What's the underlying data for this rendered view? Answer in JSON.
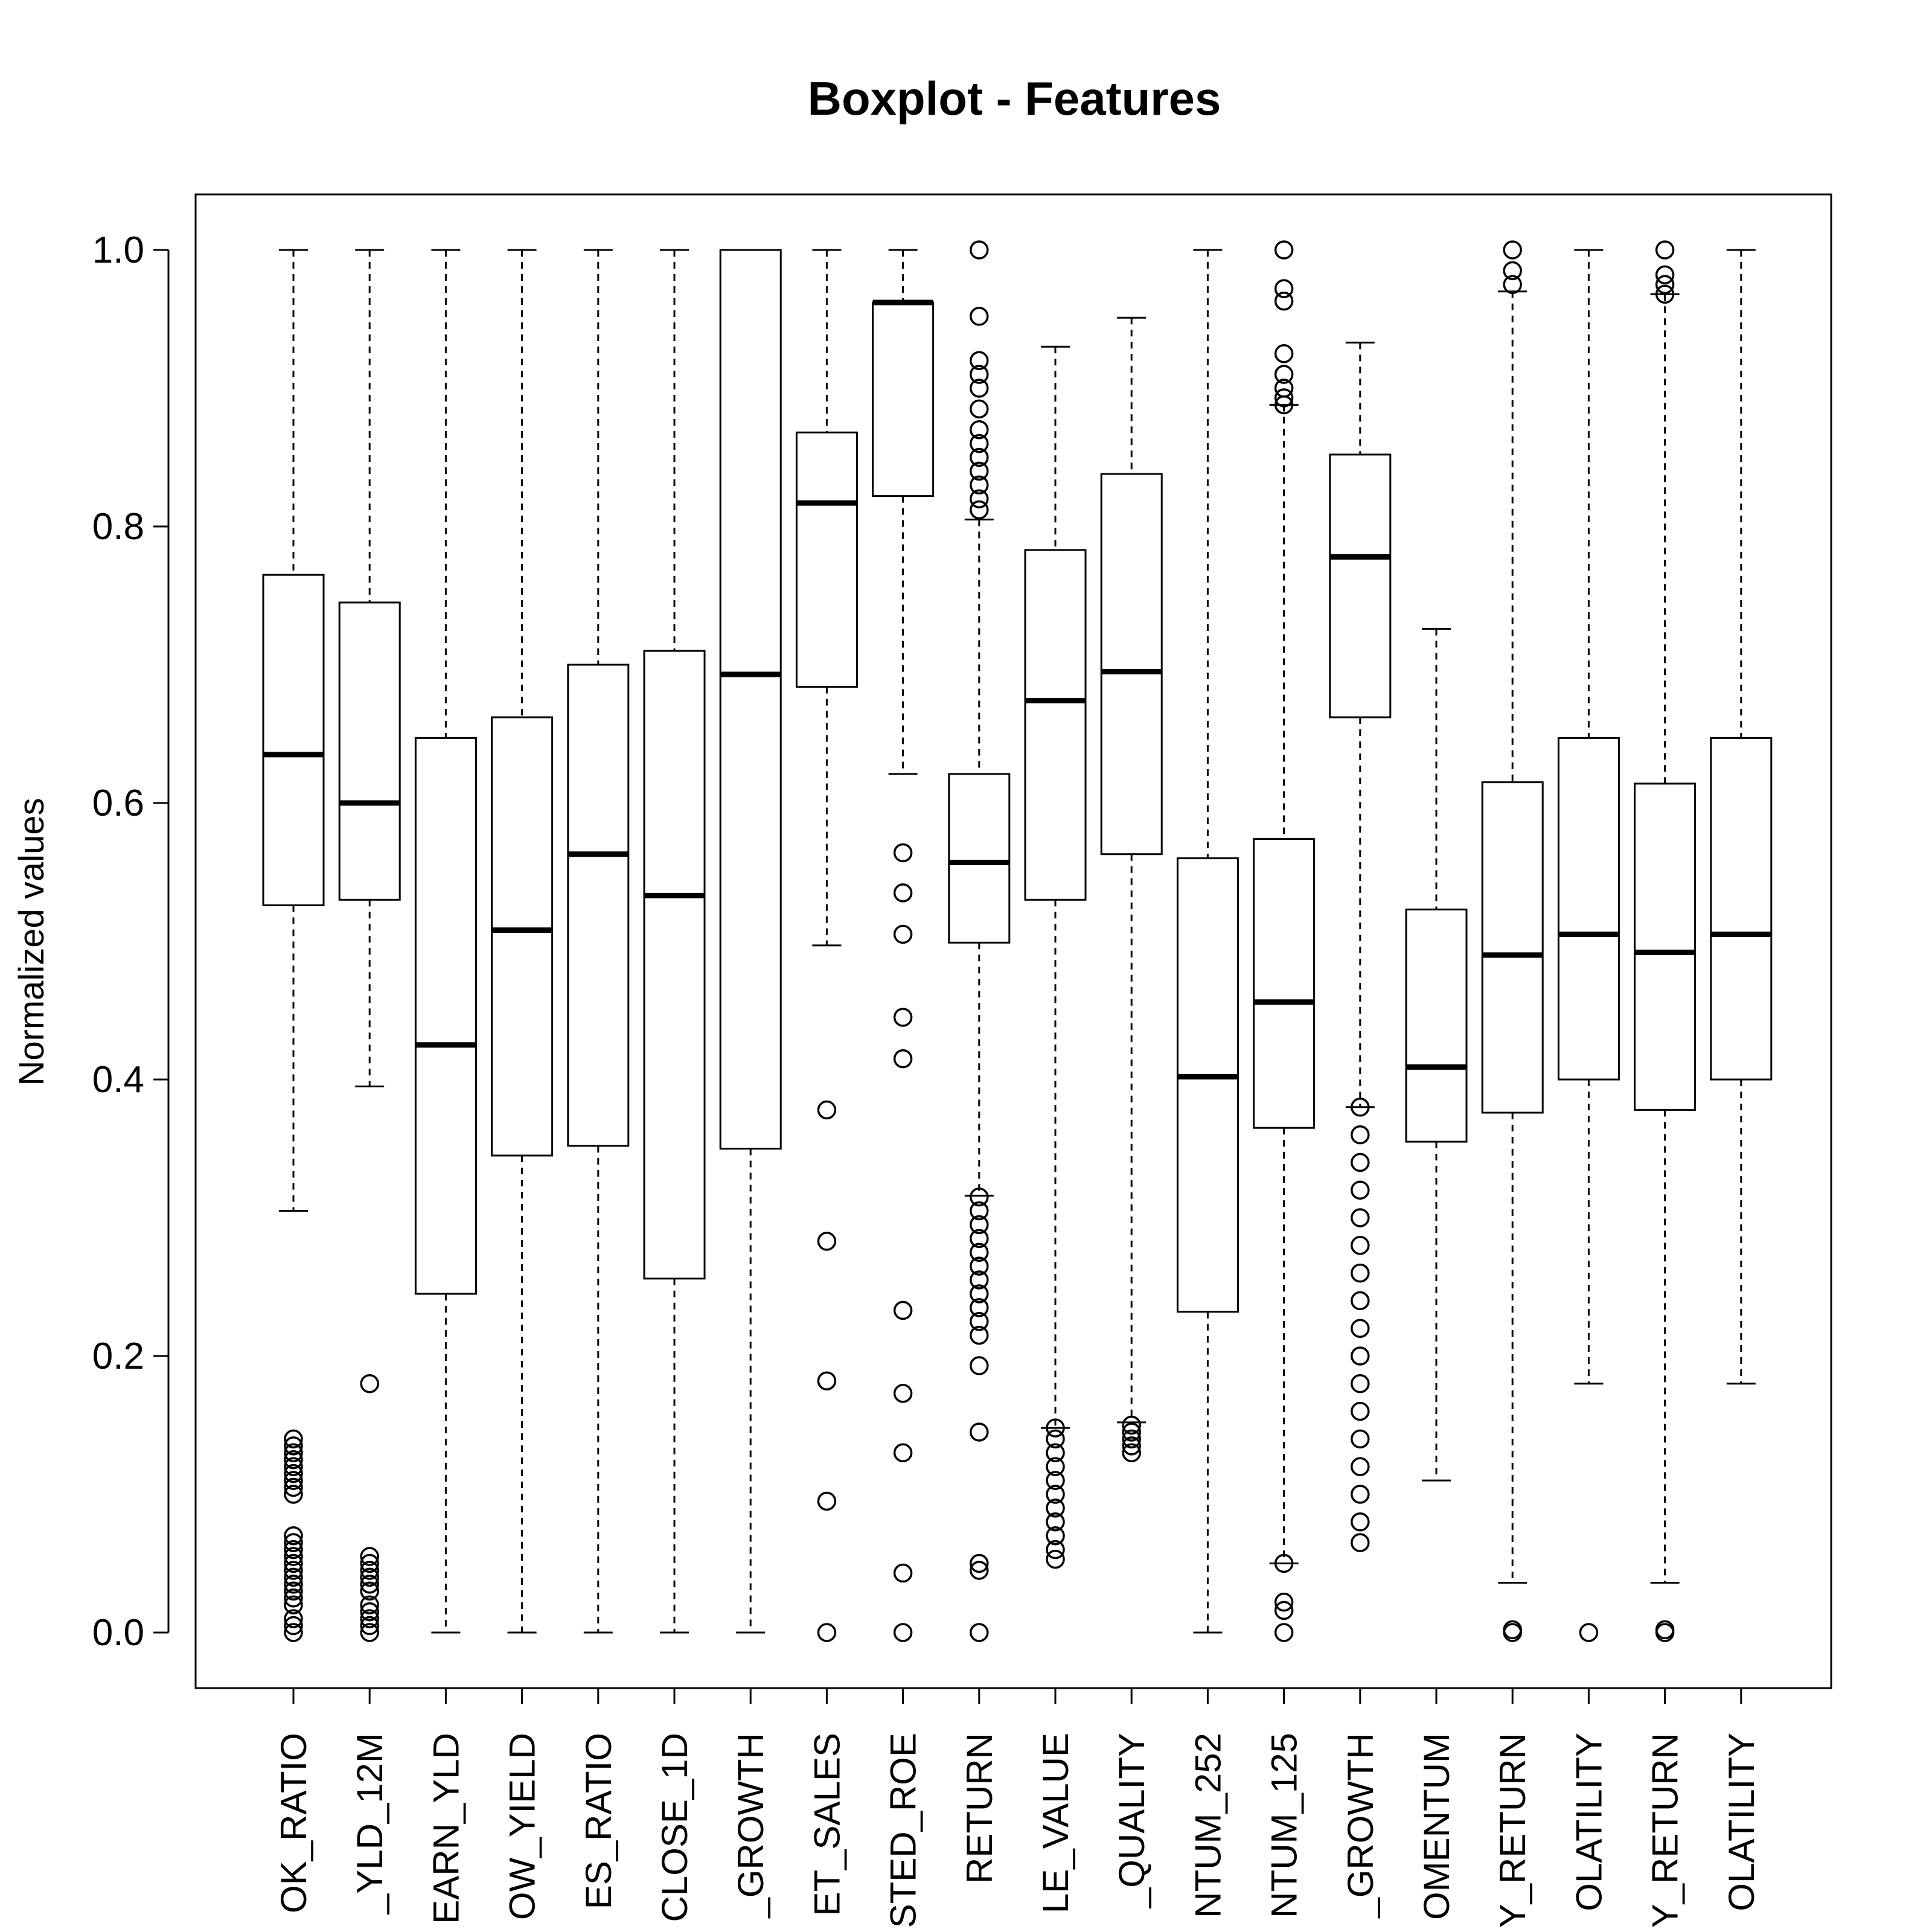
{
  "chart_data": {
    "type": "boxplot",
    "title": "Boxplot - Features",
    "ylabel": "Normalized values",
    "xlabel": "",
    "ylim": [
      0,
      1
    ],
    "yticks": [
      "0.0",
      "0.2",
      "0.4",
      "0.6",
      "0.8",
      "1.0"
    ],
    "ytick_values": [
      0,
      0.2,
      0.4,
      0.6,
      0.8,
      1.0
    ],
    "grid": false,
    "legend": "none",
    "categories": [
      "OK_RATIO",
      "_YLD_12M",
      "EARN_YLD",
      "OW_YIELD",
      "ES_RATIO",
      "CLOSE_1D",
      "_GROWTH",
      "ET_SALES",
      "STED_ROE",
      "RETURN",
      "LE_VALUE",
      "_QUALITY",
      "NTUM_252",
      "NTUM_125",
      "_GROWTH",
      "OMENTUM",
      "Y_RETURN",
      "OLATILITY",
      "Y_RETURN",
      "OLATILITY"
    ],
    "boxes": [
      {
        "whisker_low": 0.305,
        "q1": 0.526,
        "median": 0.635,
        "q3": 0.765,
        "whisker_high": 1.0,
        "outliers": [
          0.0,
          0.005,
          0.01,
          0.02,
          0.025,
          0.03,
          0.035,
          0.04,
          0.045,
          0.05,
          0.055,
          0.06,
          0.065,
          0.07,
          0.1,
          0.105,
          0.11,
          0.115,
          0.12,
          0.125,
          0.13,
          0.135,
          0.14
        ]
      },
      {
        "whisker_low": 0.395,
        "q1": 0.53,
        "median": 0.6,
        "q3": 0.745,
        "whisker_high": 1.0,
        "outliers": [
          0.18,
          0.0,
          0.005,
          0.01,
          0.015,
          0.02,
          0.03,
          0.035,
          0.04,
          0.045,
          0.05,
          0.055
        ]
      },
      {
        "whisker_low": 0.0,
        "q1": 0.245,
        "median": 0.425,
        "q3": 0.647,
        "whisker_high": 1.0,
        "outliers": []
      },
      {
        "whisker_low": 0.0,
        "q1": 0.345,
        "median": 0.508,
        "q3": 0.662,
        "whisker_high": 1.0,
        "outliers": []
      },
      {
        "whisker_low": 0.0,
        "q1": 0.352,
        "median": 0.563,
        "q3": 0.7,
        "whisker_high": 1.0,
        "outliers": []
      },
      {
        "whisker_low": 0.0,
        "q1": 0.256,
        "median": 0.533,
        "q3": 0.71,
        "whisker_high": 1.0,
        "outliers": []
      },
      {
        "whisker_low": 0.0,
        "q1": 0.35,
        "median": 0.693,
        "q3": 1.0,
        "whisker_high": 1.0,
        "outliers": []
      },
      {
        "whisker_low": 0.497,
        "q1": 0.684,
        "median": 0.817,
        "q3": 0.868,
        "whisker_high": 1.0,
        "outliers": [
          0.378,
          0.283,
          0.182,
          0.095,
          0.0
        ]
      },
      {
        "whisker_low": 0.621,
        "q1": 0.822,
        "median": 0.962,
        "q3": 0.962,
        "whisker_high": 1.0,
        "outliers": [
          0.564,
          0.535,
          0.505,
          0.445,
          0.415,
          0.233,
          0.173,
          0.13,
          0.043,
          0.0
        ]
      },
      {
        "whisker_low": 0.316,
        "q1": 0.499,
        "median": 0.557,
        "q3": 0.621,
        "whisker_high": 0.805,
        "outliers": [
          1.0,
          0.952,
          0.92,
          0.91,
          0.9,
          0.885,
          0.87,
          0.86,
          0.85,
          0.84,
          0.83,
          0.82,
          0.812,
          0.315,
          0.305,
          0.295,
          0.285,
          0.275,
          0.265,
          0.255,
          0.245,
          0.235,
          0.225,
          0.215,
          0.193,
          0.145,
          0.05,
          0.045,
          0.0
        ]
      },
      {
        "whisker_low": 0.148,
        "q1": 0.53,
        "median": 0.674,
        "q3": 0.783,
        "whisker_high": 0.93,
        "outliers": [
          0.148,
          0.14,
          0.13,
          0.12,
          0.11,
          0.1,
          0.09,
          0.08,
          0.07,
          0.06,
          0.053
        ]
      },
      {
        "whisker_low": 0.152,
        "q1": 0.563,
        "median": 0.695,
        "q3": 0.838,
        "whisker_high": 0.951,
        "outliers": [
          0.15,
          0.145,
          0.14,
          0.135,
          0.13
        ]
      },
      {
        "whisker_low": 0.0,
        "q1": 0.232,
        "median": 0.402,
        "q3": 0.56,
        "whisker_high": 1.0,
        "outliers": []
      },
      {
        "whisker_low": 0.05,
        "q1": 0.365,
        "median": 0.456,
        "q3": 0.574,
        "whisker_high": 0.888,
        "outliers": [
          1.0,
          0.972,
          0.963,
          0.925,
          0.91,
          0.9,
          0.893,
          0.888,
          0.05,
          0.022,
          0.016,
          0.0
        ]
      },
      {
        "whisker_low": 0.38,
        "q1": 0.662,
        "median": 0.778,
        "q3": 0.852,
        "whisker_high": 0.933,
        "outliers": [
          0.38,
          0.36,
          0.34,
          0.32,
          0.3,
          0.28,
          0.26,
          0.24,
          0.22,
          0.2,
          0.18,
          0.16,
          0.14,
          0.12,
          0.1,
          0.08,
          0.065
        ]
      },
      {
        "whisker_low": 0.11,
        "q1": 0.355,
        "median": 0.409,
        "q3": 0.523,
        "whisker_high": 0.726,
        "outliers": []
      },
      {
        "whisker_low": 0.036,
        "q1": 0.376,
        "median": 0.49,
        "q3": 0.615,
        "whisker_high": 0.97,
        "outliers": [
          1.0,
          0.985,
          0.975,
          0.0,
          0.002
        ]
      },
      {
        "whisker_low": 0.18,
        "q1": 0.4,
        "median": 0.505,
        "q3": 0.647,
        "whisker_high": 1.0,
        "outliers": [
          0.0
        ]
      },
      {
        "whisker_low": 0.036,
        "q1": 0.378,
        "median": 0.492,
        "q3": 0.614,
        "whisker_high": 0.968,
        "outliers": [
          1.0,
          0.982,
          0.975,
          0.968,
          0.0,
          0.002
        ]
      },
      {
        "whisker_low": 0.18,
        "q1": 0.4,
        "median": 0.505,
        "q3": 0.647,
        "whisker_high": 1.0,
        "outliers": []
      }
    ]
  }
}
